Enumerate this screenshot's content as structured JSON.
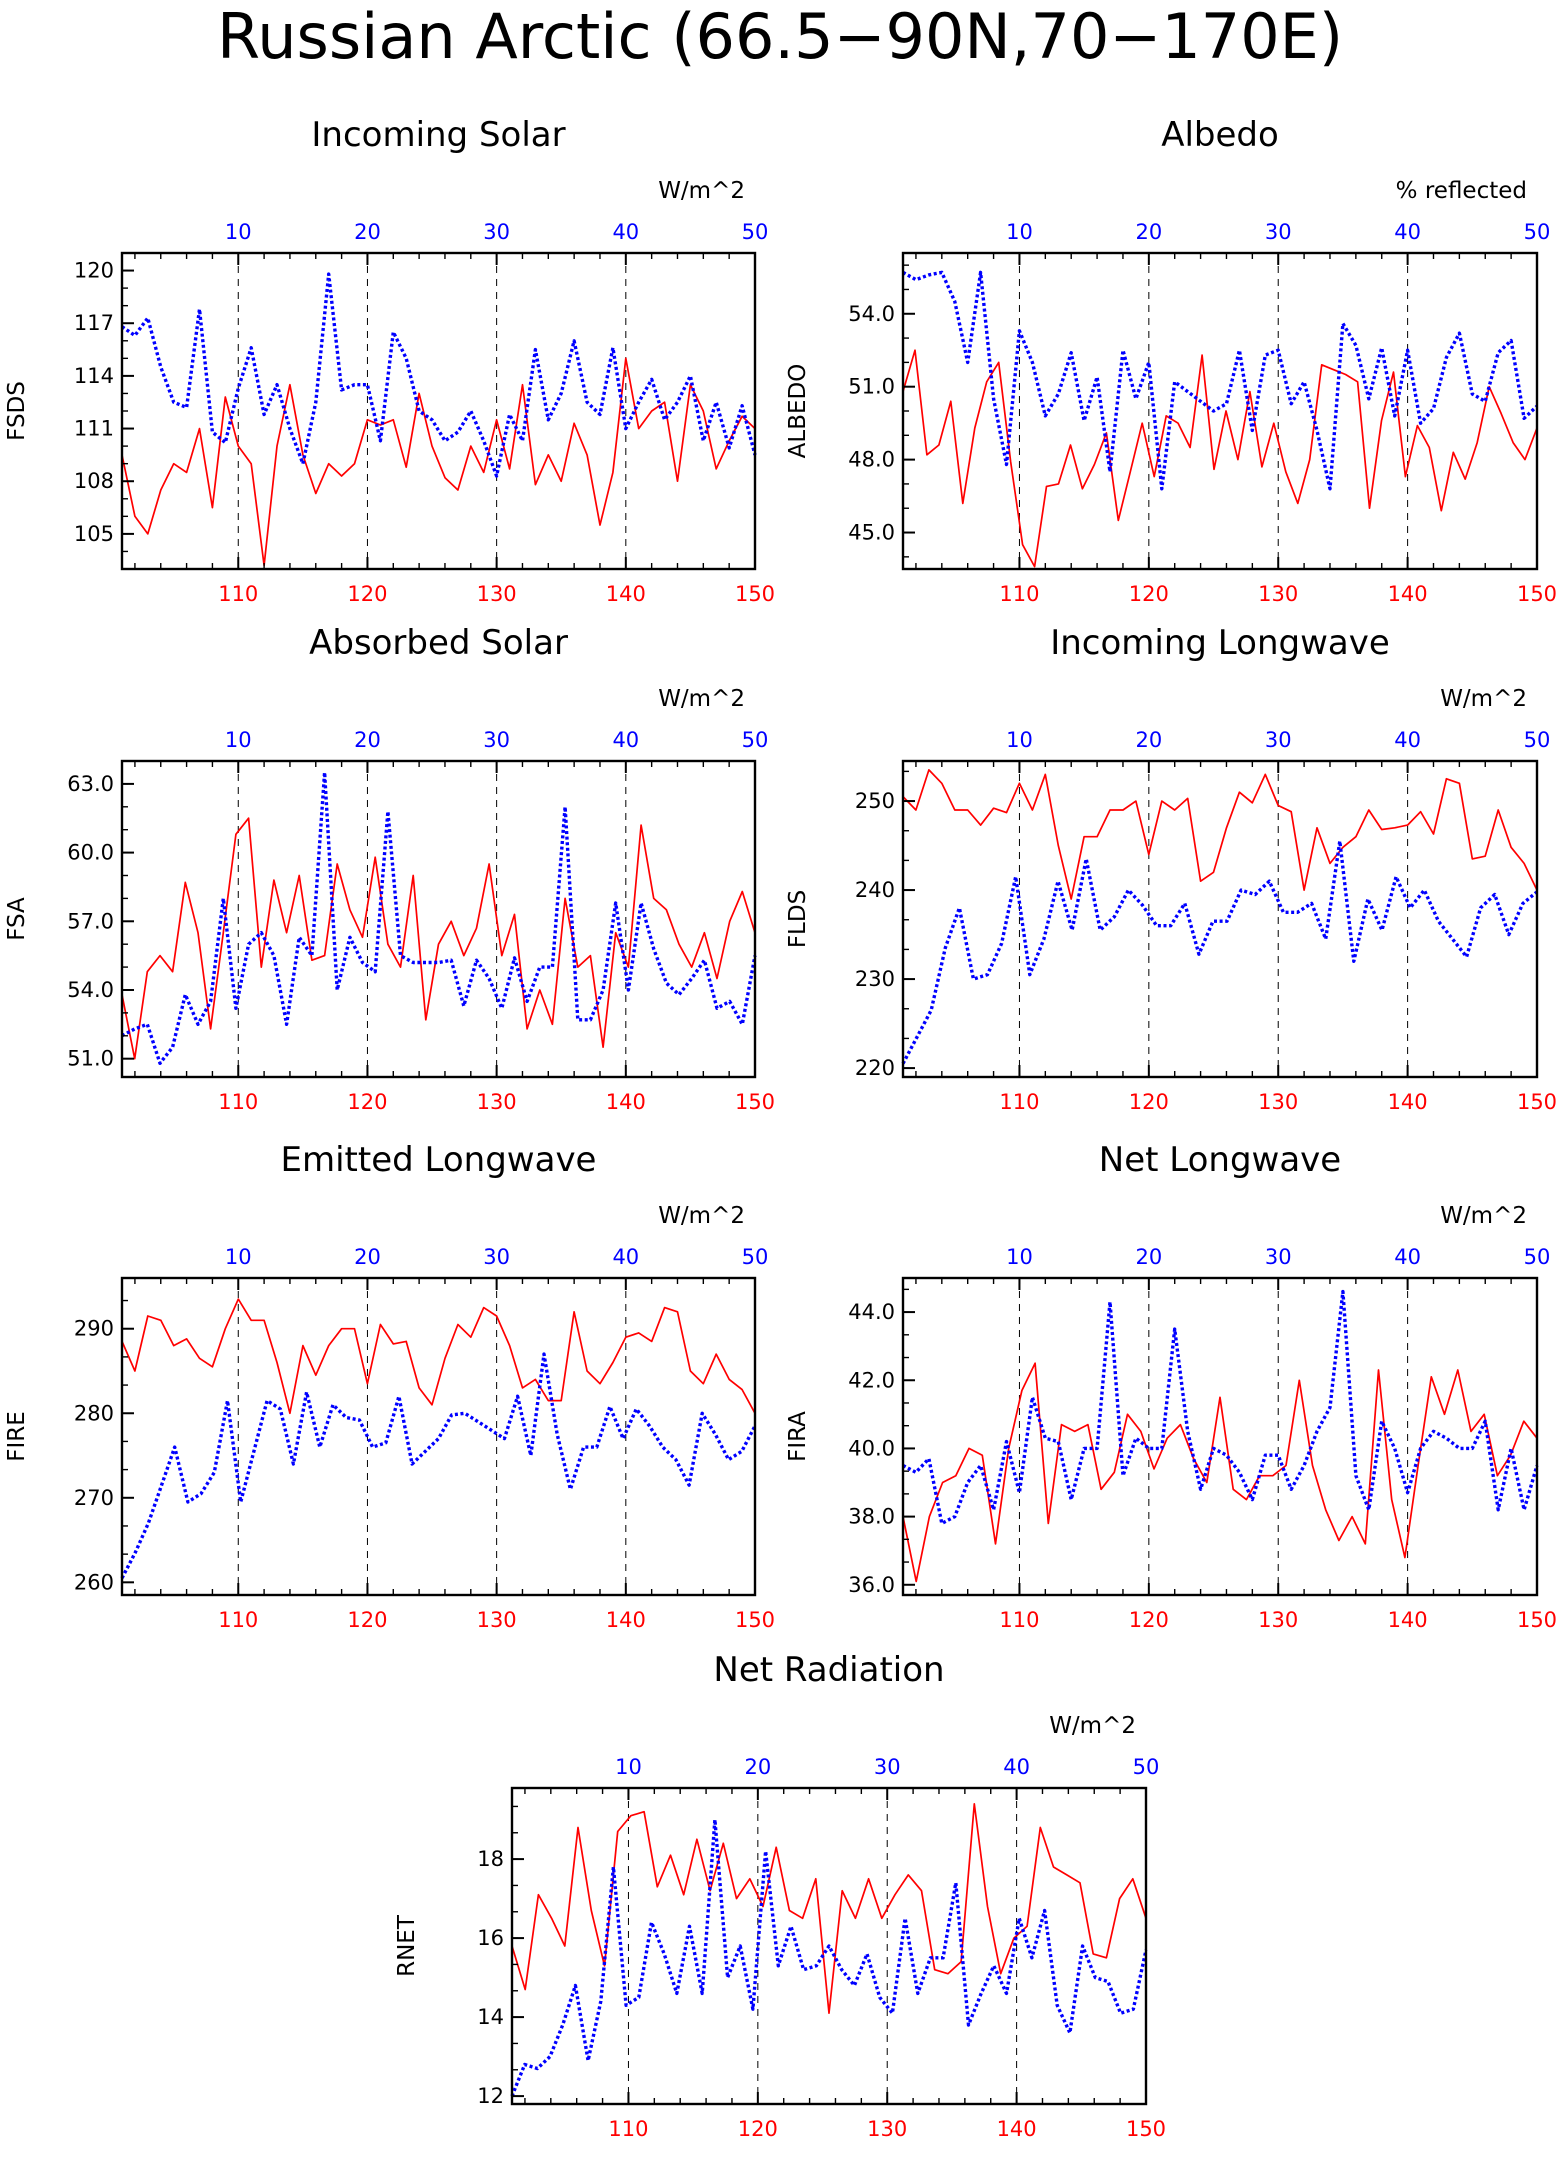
{
  "figure": {
    "title": "Russian Arctic (66.5−90N,70−170E)",
    "colors": {
      "red_series": "#ff0000",
      "blue_series": "#0000ff",
      "axis": "#000000"
    }
  },
  "chart_data": [
    {
      "type": "line",
      "title": "Incoming Solar",
      "ylabel": "FSDS",
      "top_unit": "W/m^2",
      "bottom_axis": {
        "range": [
          101,
          150
        ],
        "ticks": [
          110,
          120,
          130,
          140,
          150
        ],
        "color": "#ff0000"
      },
      "top_axis": {
        "range": [
          1,
          50
        ],
        "ticks": [
          10,
          20,
          30,
          40,
          50
        ],
        "color": "#0000ff"
      },
      "ylim": [
        103,
        121
      ],
      "yticks": [
        "105",
        "108",
        "111",
        "114",
        "117",
        "120"
      ],
      "series": [
        {
          "color": "#ff0000",
          "style": "solid",
          "values": [
            109.5,
            106,
            105,
            107.5,
            109,
            108.5,
            111,
            106.5,
            112.8,
            110,
            109,
            103.2,
            110,
            113.5,
            109.5,
            107.3,
            109,
            108.3,
            109,
            111.5,
            111.2,
            111.5,
            108.8,
            113,
            110,
            108.2,
            107.5,
            110,
            108.5,
            111.5,
            108.7,
            113.5,
            107.8,
            109.5,
            108,
            111.3,
            109.5,
            105.5,
            108.5,
            115,
            111,
            112,
            112.5,
            108,
            113.5,
            112,
            108.7,
            110.3,
            111.7,
            111
          ]
        },
        {
          "color": "#0000ff",
          "style": "dotted",
          "values": [
            116.8,
            116.3,
            117.3,
            114.5,
            112.5,
            112.2,
            117.8,
            110.8,
            110.2,
            113.3,
            115.6,
            111.8,
            113.5,
            111,
            109,
            112.5,
            119.8,
            113.2,
            113.5,
            113.5,
            110.3,
            116.5,
            115,
            112,
            111.5,
            110.3,
            110.8,
            112,
            110.3,
            108.3,
            111.8,
            110.3,
            115.5,
            111.5,
            113,
            116,
            112.5,
            111.8,
            115.6,
            111,
            112.5,
            113.8,
            111.5,
            112.5,
            114,
            110.3,
            112.5,
            109.9,
            112.3,
            109.5
          ]
        }
      ]
    },
    {
      "type": "line",
      "title": "Albedo",
      "ylabel": "ALBEDO",
      "top_unit": "% reflected",
      "bottom_axis": {
        "range": [
          101,
          150
        ],
        "ticks": [
          110,
          120,
          130,
          140,
          150
        ],
        "color": "#ff0000"
      },
      "top_axis": {
        "range": [
          1,
          50
        ],
        "ticks": [
          10,
          20,
          30,
          40,
          50
        ],
        "color": "#0000ff"
      },
      "ylim": [
        43.5,
        56.5
      ],
      "yticks": [
        "45.0",
        "48.0",
        "51.0",
        "54.0"
      ],
      "series": [
        {
          "color": "#ff0000",
          "style": "solid",
          "values": [
            50.8,
            52.5,
            48.2,
            48.6,
            50.4,
            46.2,
            49.3,
            51.2,
            52,
            47.9,
            44.5,
            43.6,
            46.9,
            47,
            48.6,
            46.8,
            47.8,
            49.1,
            45.5,
            47.5,
            49.5,
            47.3,
            49.8,
            49.5,
            48.5,
            52.3,
            47.6,
            50,
            48,
            50.8,
            47.7,
            49.5,
            47.5,
            46.2,
            48,
            51.9,
            51.7,
            51.5,
            51.2,
            46,
            49.6,
            51.6,
            47.3,
            49.4,
            48.5,
            45.9,
            48.3,
            47.2,
            48.7,
            51,
            49.9,
            48.7,
            48,
            49.3
          ]
        },
        {
          "color": "#0000ff",
          "style": "dotted",
          "values": [
            55.7,
            55.4,
            55.6,
            55.7,
            54.5,
            52,
            55.7,
            50.5,
            47.8,
            53.3,
            52,
            49.8,
            50.7,
            52.4,
            49.6,
            51.4,
            47.5,
            52.5,
            50.5,
            52,
            46.8,
            51.2,
            50.8,
            50.4,
            50,
            50.3,
            52.5,
            49.2,
            52.3,
            52.5,
            50.3,
            51.2,
            49.2,
            46.8,
            53.6,
            52.7,
            50.5,
            52.6,
            49.8,
            52.5,
            49.5,
            50.1,
            52.2,
            53.2,
            50.7,
            50.4,
            52.4,
            52.9,
            49.7,
            50.2
          ]
        }
      ]
    },
    {
      "type": "line",
      "title": "Absorbed Solar",
      "ylabel": "FSA",
      "top_unit": "W/m^2",
      "bottom_axis": {
        "range": [
          101,
          150
        ],
        "ticks": [
          110,
          120,
          130,
          140,
          150
        ],
        "color": "#ff0000"
      },
      "top_axis": {
        "range": [
          1,
          50
        ],
        "ticks": [
          10,
          20,
          30,
          40,
          50
        ],
        "color": "#0000ff"
      },
      "ylim": [
        50.2,
        64.0
      ],
      "yticks": [
        "51.0",
        "54.0",
        "57.0",
        "60.0",
        "63.0"
      ],
      "series": [
        {
          "color": "#ff0000",
          "style": "solid",
          "values": [
            53.8,
            51,
            54.8,
            55.5,
            54.8,
            58.7,
            56.5,
            52.3,
            56.5,
            60.8,
            61.5,
            55,
            58.8,
            56.5,
            59,
            55.3,
            55.5,
            59.5,
            57.5,
            56.3,
            59.8,
            56,
            55,
            59,
            52.7,
            56,
            57,
            55.5,
            56.7,
            59.5,
            55.5,
            57.3,
            52.3,
            54,
            52.5,
            58,
            55,
            55.5,
            51.5,
            56.5,
            55,
            61.2,
            58,
            57.5,
            56,
            55,
            56.5,
            54.5,
            57,
            58.3,
            56.5
          ]
        },
        {
          "color": "#0000ff",
          "style": "dotted",
          "values": [
            52,
            52.3,
            52.5,
            50.8,
            51.5,
            53.8,
            52.5,
            53.5,
            58,
            53.2,
            56,
            56.5,
            55.5,
            52.5,
            56.3,
            55.5,
            63.5,
            54,
            56.3,
            55.2,
            54.8,
            61.8,
            55.5,
            55.2,
            55.2,
            55.2,
            55.3,
            53.3,
            55.3,
            54.5,
            53.2,
            55.4,
            53.5,
            55,
            55,
            62,
            52.7,
            52.7,
            54,
            57.8,
            54,
            57.8,
            55.8,
            54.3,
            53.8,
            54.5,
            55.3,
            53.2,
            53.5,
            52.5,
            55.5
          ]
        }
      ]
    },
    {
      "type": "line",
      "title": "Incoming Longwave",
      "ylabel": "FLDS",
      "top_unit": "W/m^2",
      "bottom_axis": {
        "range": [
          101,
          150
        ],
        "ticks": [
          110,
          120,
          130,
          140,
          150
        ],
        "color": "#ff0000"
      },
      "top_axis": {
        "range": [
          1,
          50
        ],
        "ticks": [
          10,
          20,
          30,
          40,
          50
        ],
        "color": "#0000ff"
      },
      "ylim": [
        219,
        254.5
      ],
      "yticks": [
        "220",
        "230",
        "240",
        "250"
      ],
      "series": [
        {
          "color": "#ff0000",
          "style": "solid",
          "values": [
            250.5,
            249,
            253.5,
            252,
            249,
            249,
            247.3,
            249.2,
            248.7,
            252,
            249,
            253,
            245,
            239,
            246,
            246,
            249,
            249,
            250,
            244,
            250,
            249,
            250.3,
            241,
            242,
            247,
            251,
            249.8,
            253,
            249.5,
            248.8,
            240,
            247,
            243,
            244.8,
            246,
            249,
            246.8,
            247,
            247.3,
            248.8,
            246.3,
            252.5,
            252,
            243.5,
            243.8,
            249,
            244.8,
            243,
            240
          ]
        },
        {
          "color": "#0000ff",
          "style": "dotted",
          "values": [
            220.5,
            223.5,
            226.5,
            233.5,
            238,
            230,
            230.5,
            234,
            241.5,
            230.5,
            234.5,
            241,
            235.5,
            243.5,
            235.5,
            237,
            240,
            238.3,
            236,
            236,
            238.5,
            232.8,
            236.5,
            236.5,
            240,
            239.5,
            241,
            237.5,
            237.5,
            238.5,
            234.5,
            245.5,
            232,
            239,
            235.5,
            241.5,
            238,
            240,
            236.5,
            234.5,
            232.5,
            238,
            239.5,
            235,
            238.5,
            239.8
          ]
        }
      ]
    },
    {
      "type": "line",
      "title": "Emitted Longwave",
      "ylabel": "FIRE",
      "top_unit": "W/m^2",
      "bottom_axis": {
        "range": [
          101,
          150
        ],
        "ticks": [
          110,
          120,
          130,
          140,
          150
        ],
        "color": "#ff0000"
      },
      "top_axis": {
        "range": [
          1,
          50
        ],
        "ticks": [
          10,
          20,
          30,
          40,
          50
        ],
        "color": "#0000ff"
      },
      "ylim": [
        258.5,
        296
      ],
      "yticks": [
        "260",
        "270",
        "280",
        "290"
      ],
      "series": [
        {
          "color": "#ff0000",
          "style": "solid",
          "values": [
            288.5,
            285,
            291.5,
            291,
            288,
            288.8,
            286.5,
            285.5,
            290,
            293.5,
            291,
            291,
            286,
            280,
            288,
            284.5,
            288,
            290,
            290,
            283.5,
            290.5,
            288.2,
            288.5,
            283,
            281,
            286.5,
            290.5,
            289,
            292.5,
            291.5,
            288,
            283,
            284,
            281.5,
            281.5,
            292,
            285,
            283.5,
            286,
            289,
            289.5,
            288.5,
            292.5,
            292,
            285,
            283.5,
            287,
            284,
            282.8,
            280
          ]
        },
        {
          "color": "#0000ff",
          "style": "dotted",
          "values": [
            260.5,
            263.5,
            267,
            271.5,
            276,
            269.5,
            270.5,
            273,
            281.5,
            269.5,
            275.5,
            281.5,
            280.5,
            274,
            282.5,
            276,
            281,
            279.5,
            279.2,
            276,
            276.5,
            282,
            274,
            275.5,
            277,
            279.8,
            280,
            279,
            278,
            277,
            282,
            275,
            287,
            277.5,
            271,
            276,
            276,
            280.8,
            277,
            280.5,
            278.5,
            276,
            274.5,
            271.5,
            280,
            277.5,
            274.5,
            275.5,
            278.5
          ]
        }
      ]
    },
    {
      "type": "line",
      "title": "Net Longwave",
      "ylabel": "FIRA",
      "top_unit": "W/m^2",
      "bottom_axis": {
        "range": [
          101,
          150
        ],
        "ticks": [
          110,
          120,
          130,
          140,
          150
        ],
        "color": "#ff0000"
      },
      "top_axis": {
        "range": [
          1,
          50
        ],
        "ticks": [
          10,
          20,
          30,
          40,
          50
        ],
        "color": "#0000ff"
      },
      "ylim": [
        35.7,
        45.0
      ],
      "yticks": [
        "36.0",
        "38.0",
        "40.0",
        "42.0",
        "44.0"
      ],
      "series": [
        {
          "color": "#ff0000",
          "style": "solid",
          "values": [
            38,
            36.1,
            38,
            39,
            39.2,
            40,
            39.8,
            37.2,
            40,
            41.7,
            42.5,
            37.8,
            40.7,
            40.5,
            40.7,
            38.8,
            39.3,
            41,
            40.5,
            39.4,
            40.3,
            40.7,
            39.7,
            39,
            41.5,
            38.8,
            38.5,
            39.2,
            39.2,
            39.5,
            42,
            39.5,
            38.2,
            37.3,
            38,
            37.2,
            42.3,
            38.5,
            36.8,
            39.5,
            42.1,
            41,
            42.3,
            40.5,
            41,
            39.2,
            39.8,
            40.8,
            40.3
          ]
        },
        {
          "color": "#0000ff",
          "style": "dotted",
          "values": [
            39.5,
            39.3,
            39.7,
            37.8,
            38,
            39,
            39.5,
            38.2,
            40.2,
            38.7,
            41.5,
            40.3,
            40.2,
            38.5,
            40,
            40,
            44.3,
            39.2,
            40.3,
            40,
            40,
            43.5,
            40.5,
            38.8,
            40,
            39.8,
            39.3,
            38.5,
            39.8,
            39.8,
            38.8,
            39.5,
            40.5,
            41.2,
            44.6,
            39.2,
            38.2,
            40.8,
            40,
            38.7,
            40,
            40.5,
            40.3,
            40,
            40,
            40.8,
            38.2,
            40,
            38.2,
            39.5
          ]
        }
      ]
    },
    {
      "type": "line",
      "title": "Net Radiation",
      "ylabel": "RNET",
      "top_unit": "W/m^2",
      "bottom_axis": {
        "range": [
          101,
          150
        ],
        "ticks": [
          110,
          120,
          130,
          140,
          150
        ],
        "color": "#ff0000"
      },
      "top_axis": {
        "range": [
          1,
          50
        ],
        "ticks": [
          10,
          20,
          30,
          40,
          50
        ],
        "color": "#0000ff"
      },
      "ylim": [
        11.8,
        19.8
      ],
      "yticks": [
        "12",
        "14",
        "16",
        "18"
      ],
      "series": [
        {
          "color": "#ff0000",
          "style": "solid",
          "values": [
            15.8,
            14.7,
            17.1,
            16.5,
            15.8,
            18.8,
            16.7,
            15.3,
            18.7,
            19.1,
            19.2,
            17.3,
            18.1,
            17.1,
            18.5,
            17.2,
            18.4,
            17,
            17.5,
            16.8,
            18.3,
            16.7,
            16.5,
            17.5,
            14.1,
            17.2,
            16.5,
            17.5,
            16.5,
            17.1,
            17.6,
            17.2,
            15.2,
            15.1,
            15.4,
            19.4,
            16.8,
            15.1,
            16,
            16.3,
            18.8,
            17.8,
            17.6,
            17.4,
            15.6,
            15.5,
            17,
            17.5,
            16.5
          ]
        },
        {
          "color": "#0000ff",
          "style": "dotted",
          "values": [
            12,
            12.8,
            12.7,
            13,
            13.8,
            14.8,
            12.9,
            14.4,
            17.8,
            14.3,
            14.5,
            16.4,
            15.6,
            14.6,
            16.3,
            14.6,
            19,
            15,
            15.8,
            14.2,
            18.2,
            15.3,
            16.3,
            15.2,
            15.3,
            15.8,
            15.2,
            14.8,
            15.6,
            14.5,
            14.1,
            16.5,
            14.6,
            15.5,
            15.5,
            17.4,
            13.8,
            14.6,
            15.3,
            14.6,
            16.5,
            15.5,
            16.7,
            14.3,
            13.6,
            15.8,
            15,
            14.9,
            14.1,
            14.2,
            15.7
          ]
        }
      ]
    }
  ]
}
